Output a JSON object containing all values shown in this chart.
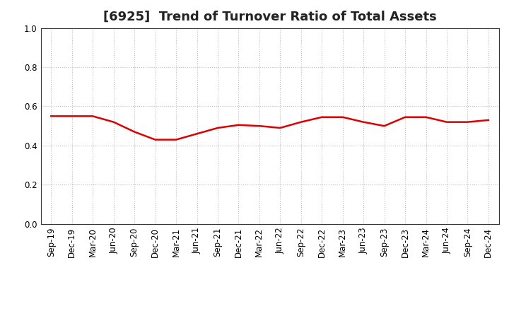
{
  "title": "[6925]  Trend of Turnover Ratio of Total Assets",
  "x_labels": [
    "Sep-19",
    "Dec-19",
    "Mar-20",
    "Jun-20",
    "Sep-20",
    "Dec-20",
    "Mar-21",
    "Jun-21",
    "Sep-21",
    "Dec-21",
    "Mar-22",
    "Jun-22",
    "Sep-22",
    "Dec-22",
    "Mar-23",
    "Jun-23",
    "Sep-23",
    "Dec-23",
    "Mar-24",
    "Jun-24",
    "Sep-24",
    "Dec-24"
  ],
  "y_values": [
    0.55,
    0.55,
    0.55,
    0.52,
    0.47,
    0.43,
    0.43,
    0.46,
    0.49,
    0.505,
    0.5,
    0.49,
    0.52,
    0.545,
    0.545,
    0.52,
    0.5,
    0.545,
    0.545,
    0.52,
    0.52,
    0.53
  ],
  "line_color": "#dd0000",
  "line_width": 1.8,
  "ylim": [
    0.0,
    1.0
  ],
  "yticks": [
    0.0,
    0.2,
    0.4,
    0.6,
    0.8,
    1.0
  ],
  "background_color": "#ffffff",
  "grid_color": "#bbbbbb",
  "title_fontsize": 13,
  "tick_fontsize": 8.5
}
